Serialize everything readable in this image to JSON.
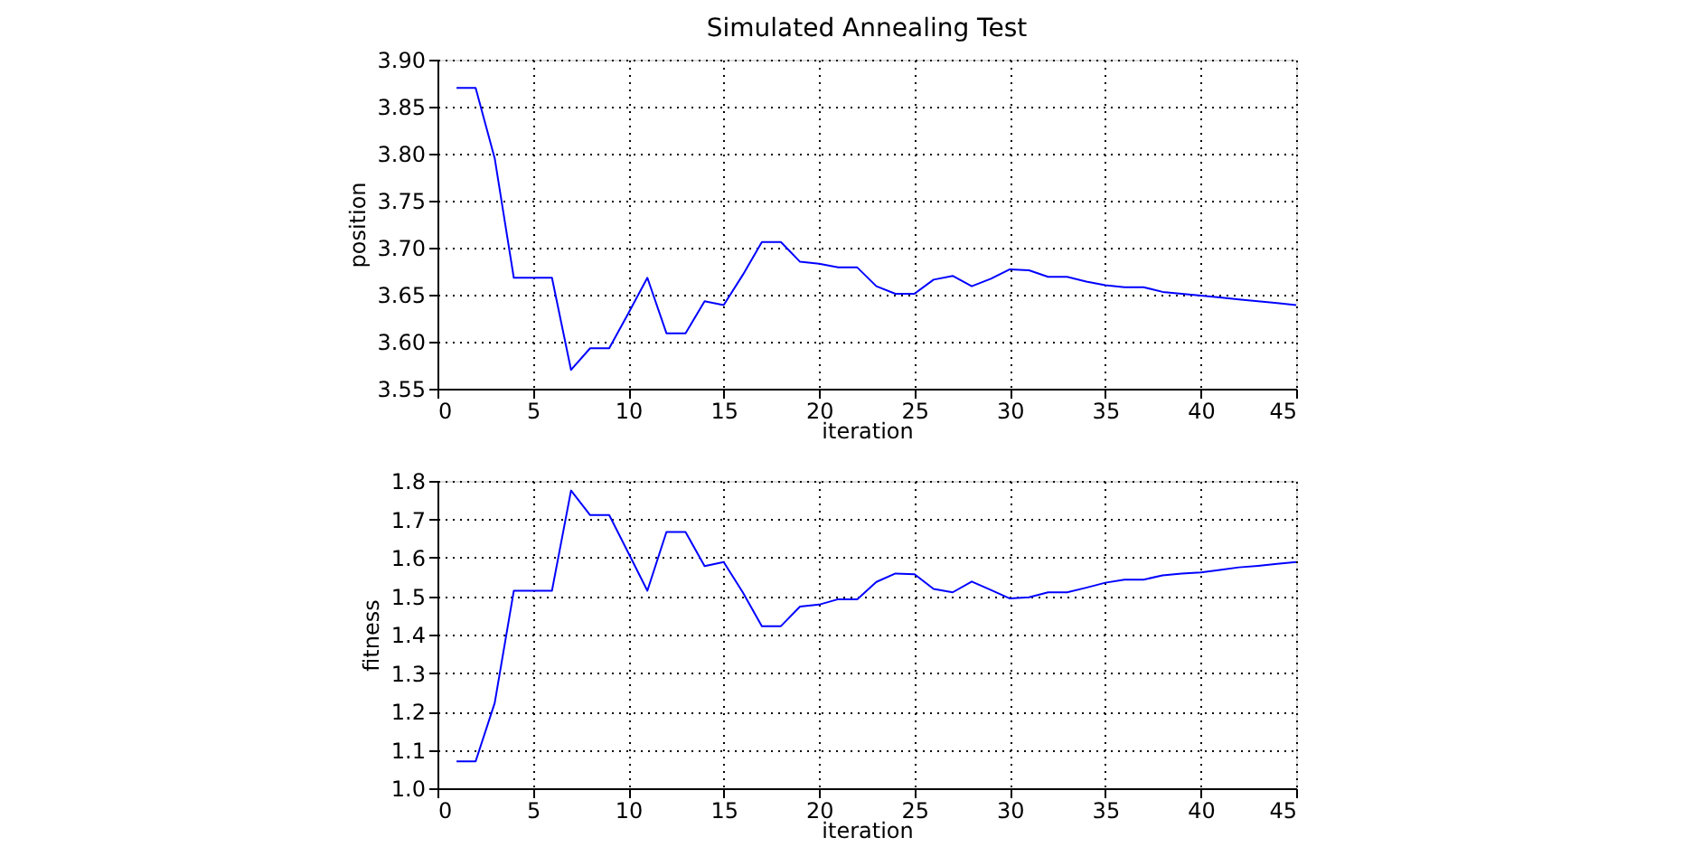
{
  "chart_data": [
    {
      "type": "line",
      "title": "Simulated Annealing Test",
      "xlabel": "iteration",
      "ylabel": "position",
      "grid": true,
      "x": [
        1,
        2,
        3,
        4,
        5,
        6,
        7,
        8,
        9,
        10,
        11,
        12,
        13,
        14,
        15,
        16,
        17,
        18,
        19,
        20,
        21,
        22,
        23,
        24,
        25,
        26,
        27,
        28,
        29,
        30,
        31,
        32,
        33,
        34,
        35,
        36,
        37,
        38,
        39,
        40,
        41,
        42,
        43,
        44,
        45
      ],
      "series": [
        {
          "color": "#0000ff",
          "values": [
            3.87,
            3.87,
            3.795,
            3.668,
            3.668,
            3.668,
            3.57,
            3.593,
            3.593,
            3.63,
            3.668,
            3.609,
            3.609,
            3.643,
            3.639,
            3.671,
            3.706,
            3.706,
            3.685,
            3.683,
            3.679,
            3.679,
            3.659,
            3.651,
            3.651,
            3.666,
            3.67,
            3.659,
            3.667,
            3.677,
            3.676,
            3.669,
            3.669,
            3.664,
            3.66,
            3.658,
            3.658,
            3.653,
            3.651,
            3.649,
            3.647,
            3.645,
            3.643,
            3.641,
            3.639
          ]
        }
      ],
      "xlim": [
        0,
        45
      ],
      "xticks": [
        0,
        5,
        10,
        15,
        20,
        25,
        30,
        35,
        40,
        45
      ],
      "ylim": [
        3.55,
        3.9
      ],
      "yticks": [
        {
          "value": 3.55,
          "label": "3.55"
        },
        {
          "value": 3.6,
          "label": "3.60"
        },
        {
          "value": 3.65,
          "label": "3.65"
        },
        {
          "value": 3.7,
          "label": "3.70"
        },
        {
          "value": 3.75,
          "label": "3.75"
        },
        {
          "value": 3.8,
          "label": "3.80"
        },
        {
          "value": 3.85,
          "label": "3.85"
        },
        {
          "value": 3.9,
          "label": "3.90"
        }
      ]
    },
    {
      "type": "line",
      "xlabel": "iteration",
      "ylabel": "fitness",
      "grid": true,
      "x": [
        1,
        2,
        3,
        4,
        5,
        6,
        7,
        8,
        9,
        10,
        11,
        12,
        13,
        14,
        15,
        16,
        17,
        18,
        19,
        20,
        21,
        22,
        23,
        24,
        25,
        26,
        27,
        28,
        29,
        30,
        31,
        32,
        33,
        34,
        35,
        36,
        37,
        38,
        39,
        40,
        41,
        42,
        43,
        44,
        45
      ],
      "series": [
        {
          "color": "#0000ff",
          "values": [
            1.07,
            1.07,
            1.222,
            1.514,
            1.514,
            1.514,
            1.775,
            1.711,
            1.711,
            1.613,
            1.514,
            1.667,
            1.667,
            1.578,
            1.589,
            1.51,
            1.422,
            1.422,
            1.473,
            1.478,
            1.492,
            1.492,
            1.537,
            1.559,
            1.557,
            1.519,
            1.51,
            1.538,
            1.516,
            1.494,
            1.497,
            1.51,
            1.51,
            1.522,
            1.535,
            1.543,
            1.543,
            1.554,
            1.559,
            1.562,
            1.568,
            1.575,
            1.579,
            1.584,
            1.589
          ]
        }
      ],
      "xlim": [
        0,
        45
      ],
      "xticks": [
        0,
        5,
        10,
        15,
        20,
        25,
        30,
        35,
        40,
        45
      ],
      "ylim": [
        1.0,
        1.8
      ],
      "yticks": [
        {
          "value": 1.0,
          "label": "1.0"
        },
        {
          "value": 1.1,
          "label": "1.1"
        },
        {
          "value": 1.2,
          "label": "1.2"
        },
        {
          "value": 1.3,
          "label": "1.3"
        },
        {
          "value": 1.4,
          "label": "1.4"
        },
        {
          "value": 1.5,
          "label": "1.5"
        },
        {
          "value": 1.6,
          "label": "1.6"
        },
        {
          "value": 1.7,
          "label": "1.7"
        },
        {
          "value": 1.8,
          "label": "1.8"
        }
      ]
    }
  ]
}
